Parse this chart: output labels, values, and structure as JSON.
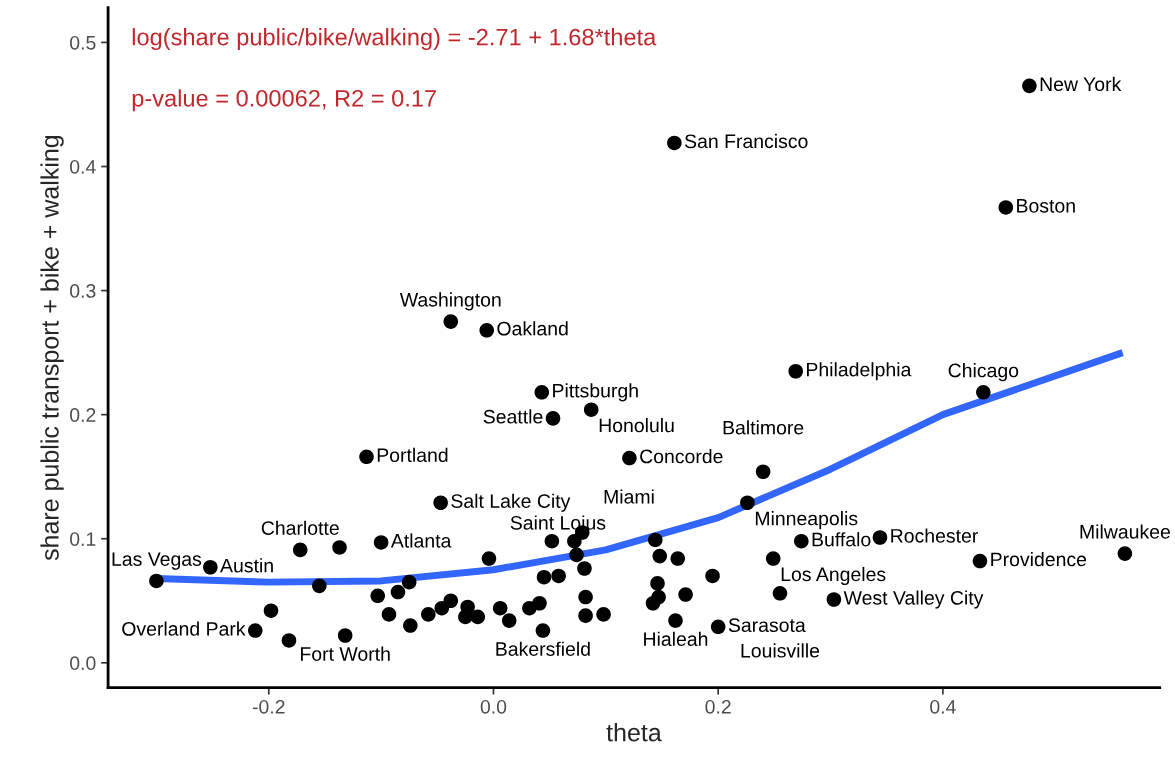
{
  "chart_data": {
    "type": "scatter",
    "xlabel": "theta",
    "ylabel": "share public transport + bike + walking",
    "xlim": [
      -0.343,
      0.593
    ],
    "ylim": [
      -0.02,
      0.528
    ],
    "xticks": [
      -0.2,
      {
        "value": 0,
        "label": "0.0"
      },
      0.2,
      0.4
    ],
    "yticks": [
      {
        "value": 0,
        "label": "0.0"
      },
      0.1,
      0.2,
      0.3,
      0.4,
      0.5
    ],
    "grid": false,
    "series": [
      {
        "color": "#000000",
        "marker": "circle",
        "x": [
          -0.3,
          -0.252,
          -0.172,
          -0.137,
          -0.1,
          -0.047,
          -0.155,
          -0.198,
          -0.212,
          -0.182,
          -0.132,
          -0.103,
          -0.093,
          -0.085,
          -0.075,
          -0.074,
          -0.058,
          -0.046,
          -0.038,
          -0.025,
          -0.023,
          -0.014,
          -0.004,
          0.006,
          0.014,
          0.032,
          0.041,
          0.044,
          0.045,
          0.058,
          0.052,
          0.072,
          0.079,
          0.074,
          0.081,
          0.082,
          0.082,
          0.098,
          0.144,
          0.148,
          0.164,
          0.146,
          0.147,
          0.142,
          0.171,
          0.162,
          0.195,
          0.2,
          0.226,
          0.274,
          0.249,
          0.255,
          0.303,
          0.344,
          0.433,
          0.562,
          -0.038,
          -0.006,
          0.043,
          0.053,
          0.087,
          -0.113,
          0.121,
          0.24,
          0.269,
          0.436,
          0.161,
          0.477,
          0.456
        ],
        "values": [
          0.066,
          0.077,
          0.091,
          0.093,
          0.097,
          0.129,
          0.062,
          0.042,
          0.026,
          0.018,
          0.022,
          0.054,
          0.039,
          0.057,
          0.065,
          0.03,
          0.039,
          0.044,
          0.05,
          0.037,
          0.045,
          0.037,
          0.084,
          0.044,
          0.034,
          0.044,
          0.048,
          0.026,
          0.069,
          0.07,
          0.098,
          0.098,
          0.105,
          0.087,
          0.076,
          0.053,
          0.038,
          0.039,
          0.099,
          0.086,
          0.084,
          0.064,
          0.053,
          0.048,
          0.055,
          0.034,
          0.07,
          0.029,
          0.129,
          0.098,
          0.084,
          0.056,
          0.051,
          0.101,
          0.082,
          0.088,
          0.275,
          0.268,
          0.218,
          0.197,
          0.204,
          0.166,
          0.165,
          0.154,
          0.235,
          0.218,
          0.419,
          0.465,
          0.367
        ]
      },
      {
        "type": "line",
        "color": "#3366ff",
        "line_style": "solid",
        "marker": "none",
        "x": [
          -0.3,
          -0.2,
          -0.1,
          0.0,
          0.1,
          0.2,
          0.3,
          0.4,
          0.56
        ],
        "values": [
          0.068,
          0.065,
          0.066,
          0.075,
          0.091,
          0.117,
          0.156,
          0.2,
          0.25
        ]
      }
    ],
    "annotations": [
      "log(share public/bike/walking) = -2.71 + 1.68*theta",
      "p-value = 0.00062, R2 = 0.17",
      {
        "text": "Las Vegas",
        "x": -0.3,
        "y": 0.066
      },
      {
        "text": "Austin",
        "x": -0.252,
        "y": 0.077
      },
      {
        "text": "Charlotte",
        "x": -0.172,
        "y": 0.091
      },
      {
        "text": "Atlanta",
        "x": -0.1,
        "y": 0.097
      },
      {
        "text": "Salt Lake City",
        "x": -0.047,
        "y": 0.129
      },
      {
        "text": "Overland Park",
        "x": -0.212,
        "y": 0.026
      },
      {
        "text": "Fort Worth",
        "x": -0.132,
        "y": 0.022
      },
      {
        "text": "Saint Loius",
        "x": -0.004,
        "y": 0.084
      },
      {
        "text": "Bakersfield",
        "x": 0.044,
        "y": 0.026
      },
      {
        "text": "Miami",
        "x": 0.079,
        "y": 0.105
      },
      {
        "text": "Hialeah",
        "x": 0.162,
        "y": 0.034
      },
      {
        "text": "Sarasota",
        "x": 0.2,
        "y": 0.029
      },
      {
        "text": "Minneapolis",
        "x": 0.226,
        "y": 0.129
      },
      {
        "text": "Buffalo",
        "x": 0.274,
        "y": 0.098
      },
      {
        "text": "Los Angeles",
        "x": 0.249,
        "y": 0.084
      },
      {
        "text": "Louisville",
        "x": 0.255,
        "y": 0.056
      },
      {
        "text": "West Valley City",
        "x": 0.303,
        "y": 0.051
      },
      {
        "text": "Rochester",
        "x": 0.344,
        "y": 0.101
      },
      {
        "text": "Providence",
        "x": 0.433,
        "y": 0.082
      },
      {
        "text": "Milwaukee",
        "x": 0.562,
        "y": 0.088
      },
      {
        "text": "Washington",
        "x": -0.038,
        "y": 0.275
      },
      {
        "text": "Oakland",
        "x": -0.006,
        "y": 0.268
      },
      {
        "text": "Pittsburgh",
        "x": 0.043,
        "y": 0.218
      },
      {
        "text": "Seattle",
        "x": 0.053,
        "y": 0.197
      },
      {
        "text": "Honolulu",
        "x": 0.087,
        "y": 0.204
      },
      {
        "text": "Portland",
        "x": -0.113,
        "y": 0.166
      },
      {
        "text": "Concorde",
        "x": 0.121,
        "y": 0.165
      },
      {
        "text": "Baltimore",
        "x": 0.24,
        "y": 0.154
      },
      {
        "text": "Philadelphia",
        "x": 0.269,
        "y": 0.235
      },
      {
        "text": "Chicago",
        "x": 0.436,
        "y": 0.218
      },
      {
        "text": "San Francisco",
        "x": 0.161,
        "y": 0.419
      },
      {
        "text": "New York",
        "x": 0.477,
        "y": 0.465
      },
      {
        "text": "Boston",
        "x": 0.456,
        "y": 0.367
      }
    ]
  }
}
